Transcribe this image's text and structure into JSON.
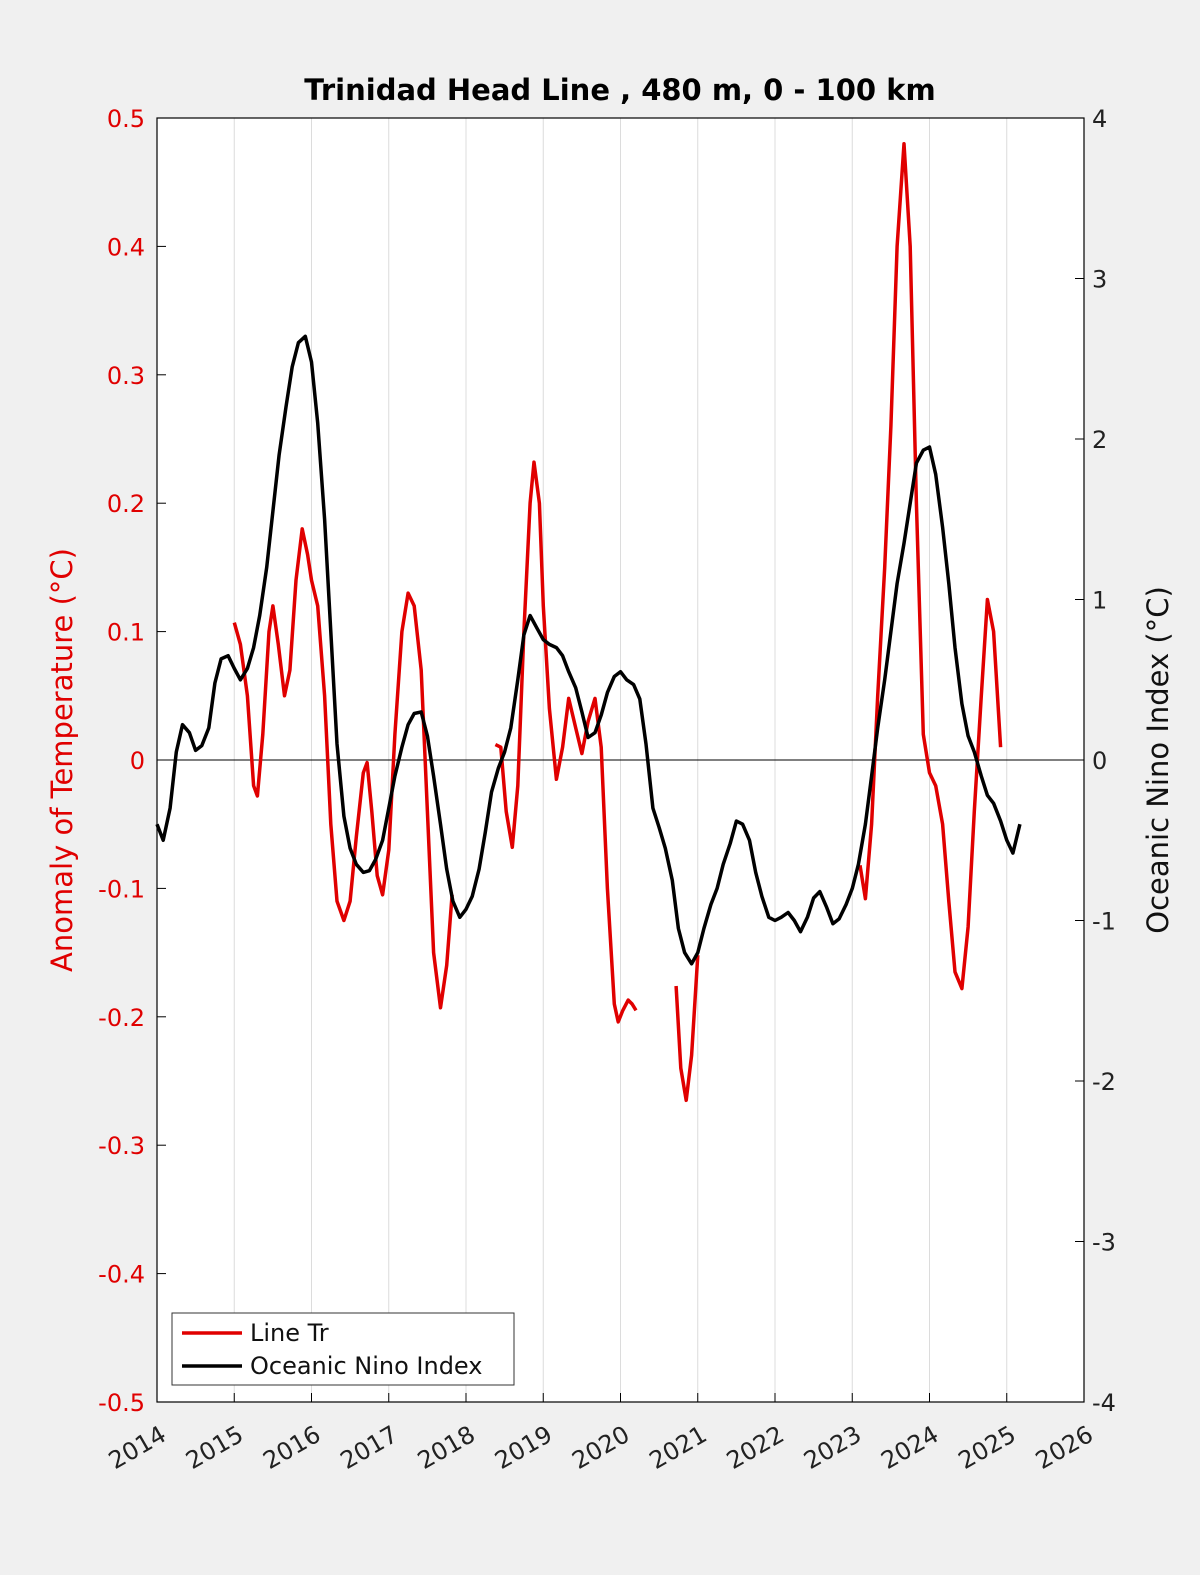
{
  "chart_data": {
    "type": "line",
    "title": "Trinidad Head Line , 480 m, 0 - 100 km",
    "ylabel_left": "Anomaly of Temperature (°C)",
    "ylabel_right": "Oceanic Nino Index (°C)",
    "xlim": [
      2014,
      2026
    ],
    "ylim_left": [
      -0.5,
      0.5
    ],
    "ylim_right": [
      -4,
      4
    ],
    "x_ticks": [
      "2014",
      "2015",
      "2016",
      "2017",
      "2018",
      "2019",
      "2020",
      "2021",
      "2022",
      "2023",
      "2024",
      "2025",
      "2026"
    ],
    "y_left_ticks": [
      "-0.5",
      "-0.4",
      "-0.3",
      "-0.2",
      "-0.1",
      "0",
      "0.1",
      "0.2",
      "0.3",
      "0.4",
      "0.5"
    ],
    "y_right_ticks": [
      "-4",
      "-3",
      "-2",
      "-1",
      "0",
      "1",
      "2",
      "3",
      "4"
    ],
    "grid": "vertical",
    "legend_position": "bottom-left",
    "legend": [
      "Line Tr",
      "Oceanic Nino Index"
    ],
    "colors": {
      "line_tr": "#e00000",
      "oni": "#000000",
      "left_axis": "#e00000"
    },
    "series": [
      {
        "name": "Line Tr",
        "axis": "left",
        "color": "#e00000",
        "segments": [
          [
            [
              2015.0,
              0.107
            ],
            [
              2015.08,
              0.09
            ],
            [
              2015.17,
              0.05
            ],
            [
              2015.25,
              -0.02
            ],
            [
              2015.3,
              -0.028
            ],
            [
              2015.37,
              0.02
            ],
            [
              2015.45,
              0.1
            ],
            [
              2015.5,
              0.12
            ],
            [
              2015.57,
              0.09
            ],
            [
              2015.65,
              0.05
            ],
            [
              2015.72,
              0.07
            ],
            [
              2015.8,
              0.14
            ],
            [
              2015.88,
              0.18
            ],
            [
              2015.95,
              0.16
            ],
            [
              2016.0,
              0.14
            ],
            [
              2016.08,
              0.12
            ],
            [
              2016.17,
              0.05
            ],
            [
              2016.25,
              -0.05
            ],
            [
              2016.33,
              -0.11
            ],
            [
              2016.42,
              -0.125
            ],
            [
              2016.5,
              -0.11
            ],
            [
              2016.58,
              -0.06
            ],
            [
              2016.67,
              -0.01
            ],
            [
              2016.72,
              -0.002
            ],
            [
              2016.78,
              -0.04
            ],
            [
              2016.85,
              -0.09
            ],
            [
              2016.92,
              -0.105
            ],
            [
              2017.0,
              -0.07
            ],
            [
              2017.08,
              0.02
            ],
            [
              2017.17,
              0.1
            ],
            [
              2017.25,
              0.13
            ],
            [
              2017.33,
              0.12
            ],
            [
              2017.42,
              0.07
            ],
            [
              2017.5,
              -0.04
            ],
            [
              2017.58,
              -0.15
            ],
            [
              2017.67,
              -0.193
            ],
            [
              2017.75,
              -0.16
            ],
            [
              2017.82,
              -0.105
            ]
          ],
          [
            [
              2018.38,
              0.012
            ],
            [
              2018.45,
              0.01
            ],
            [
              2018.52,
              -0.04
            ],
            [
              2018.6,
              -0.068
            ],
            [
              2018.67,
              -0.02
            ],
            [
              2018.75,
              0.1
            ],
            [
              2018.83,
              0.2
            ],
            [
              2018.88,
              0.232
            ],
            [
              2018.95,
              0.2
            ],
            [
              2019.0,
              0.12
            ],
            [
              2019.08,
              0.04
            ],
            [
              2019.17,
              -0.015
            ],
            [
              2019.25,
              0.01
            ],
            [
              2019.33,
              0.048
            ],
            [
              2019.42,
              0.025
            ],
            [
              2019.5,
              0.005
            ],
            [
              2019.58,
              0.03
            ],
            [
              2019.67,
              0.048
            ],
            [
              2019.75,
              0.01
            ],
            [
              2019.83,
              -0.1
            ],
            [
              2019.92,
              -0.19
            ],
            [
              2019.97,
              -0.204
            ],
            [
              2020.03,
              -0.195
            ],
            [
              2020.1,
              -0.187
            ],
            [
              2020.15,
              -0.19
            ],
            [
              2020.2,
              -0.195
            ]
          ],
          [
            [
              2020.72,
              -0.176
            ],
            [
              2020.78,
              -0.24
            ],
            [
              2020.85,
              -0.265
            ],
            [
              2020.92,
              -0.23
            ],
            [
              2021.0,
              -0.152
            ]
          ],
          [
            [
              2023.1,
              -0.082
            ],
            [
              2023.17,
              -0.108
            ],
            [
              2023.25,
              -0.05
            ],
            [
              2023.33,
              0.05
            ],
            [
              2023.42,
              0.15
            ],
            [
              2023.5,
              0.26
            ],
            [
              2023.58,
              0.4
            ],
            [
              2023.67,
              0.48
            ],
            [
              2023.75,
              0.4
            ],
            [
              2023.83,
              0.2
            ],
            [
              2023.92,
              0.02
            ],
            [
              2024.0,
              -0.01
            ],
            [
              2024.08,
              -0.02
            ],
            [
              2024.17,
              -0.05
            ],
            [
              2024.25,
              -0.11
            ],
            [
              2024.33,
              -0.165
            ],
            [
              2024.42,
              -0.178
            ],
            [
              2024.5,
              -0.13
            ],
            [
              2024.58,
              -0.04
            ],
            [
              2024.67,
              0.05
            ],
            [
              2024.75,
              0.125
            ],
            [
              2024.83,
              0.1
            ],
            [
              2024.92,
              0.01
            ]
          ]
        ]
      },
      {
        "name": "Oceanic Nino Index",
        "axis": "right",
        "color": "#000000",
        "segments": [
          [
            [
              2014.0,
              -0.4
            ],
            [
              2014.08,
              -0.5
            ],
            [
              2014.17,
              -0.3
            ],
            [
              2014.25,
              0.05
            ],
            [
              2014.33,
              0.22
            ],
            [
              2014.42,
              0.17
            ],
            [
              2014.5,
              0.06
            ],
            [
              2014.58,
              0.09
            ],
            [
              2014.67,
              0.2
            ],
            [
              2014.75,
              0.48
            ],
            [
              2014.83,
              0.63
            ],
            [
              2014.92,
              0.65
            ],
            [
              2015.0,
              0.57
            ],
            [
              2015.08,
              0.5
            ],
            [
              2015.17,
              0.57
            ],
            [
              2015.25,
              0.7
            ],
            [
              2015.33,
              0.9
            ],
            [
              2015.42,
              1.2
            ],
            [
              2015.5,
              1.55
            ],
            [
              2015.58,
              1.9
            ],
            [
              2015.67,
              2.2
            ],
            [
              2015.75,
              2.45
            ],
            [
              2015.83,
              2.6
            ],
            [
              2015.92,
              2.64
            ],
            [
              2016.0,
              2.48
            ],
            [
              2016.08,
              2.1
            ],
            [
              2016.17,
              1.5
            ],
            [
              2016.25,
              0.8
            ],
            [
              2016.33,
              0.1
            ],
            [
              2016.42,
              -0.35
            ],
            [
              2016.5,
              -0.55
            ],
            [
              2016.58,
              -0.65
            ],
            [
              2016.67,
              -0.7
            ],
            [
              2016.75,
              -0.69
            ],
            [
              2016.83,
              -0.62
            ],
            [
              2016.92,
              -0.5
            ],
            [
              2017.0,
              -0.3
            ],
            [
              2017.08,
              -0.1
            ],
            [
              2017.17,
              0.08
            ],
            [
              2017.25,
              0.22
            ],
            [
              2017.33,
              0.29
            ],
            [
              2017.42,
              0.3
            ],
            [
              2017.5,
              0.15
            ],
            [
              2017.58,
              -0.1
            ],
            [
              2017.67,
              -0.4
            ],
            [
              2017.75,
              -0.68
            ],
            [
              2017.83,
              -0.88
            ],
            [
              2017.92,
              -0.98
            ],
            [
              2018.0,
              -0.93
            ],
            [
              2018.08,
              -0.85
            ],
            [
              2018.17,
              -0.68
            ],
            [
              2018.25,
              -0.45
            ],
            [
              2018.33,
              -0.2
            ],
            [
              2018.42,
              -0.05
            ],
            [
              2018.5,
              0.05
            ],
            [
              2018.58,
              0.2
            ],
            [
              2018.67,
              0.5
            ],
            [
              2018.75,
              0.78
            ],
            [
              2018.83,
              0.9
            ],
            [
              2018.92,
              0.82
            ],
            [
              2019.0,
              0.75
            ],
            [
              2019.08,
              0.72
            ],
            [
              2019.17,
              0.7
            ],
            [
              2019.25,
              0.65
            ],
            [
              2019.33,
              0.55
            ],
            [
              2019.42,
              0.45
            ],
            [
              2019.5,
              0.3
            ],
            [
              2019.58,
              0.14
            ],
            [
              2019.67,
              0.17
            ],
            [
              2019.75,
              0.28
            ],
            [
              2019.83,
              0.42
            ],
            [
              2019.92,
              0.52
            ],
            [
              2020.0,
              0.55
            ],
            [
              2020.08,
              0.5
            ],
            [
              2020.17,
              0.47
            ],
            [
              2020.25,
              0.38
            ],
            [
              2020.33,
              0.1
            ],
            [
              2020.42,
              -0.3
            ],
            [
              2020.5,
              -0.42
            ],
            [
              2020.58,
              -0.55
            ],
            [
              2020.67,
              -0.75
            ],
            [
              2020.75,
              -1.05
            ],
            [
              2020.83,
              -1.2
            ],
            [
              2020.92,
              -1.27
            ],
            [
              2021.0,
              -1.2
            ],
            [
              2021.08,
              -1.05
            ],
            [
              2021.17,
              -0.9
            ],
            [
              2021.25,
              -0.8
            ],
            [
              2021.33,
              -0.65
            ],
            [
              2021.42,
              -0.52
            ],
            [
              2021.5,
              -0.38
            ],
            [
              2021.58,
              -0.4
            ],
            [
              2021.67,
              -0.5
            ],
            [
              2021.75,
              -0.7
            ],
            [
              2021.83,
              -0.85
            ],
            [
              2021.92,
              -0.98
            ],
            [
              2022.0,
              -1.0
            ],
            [
              2022.08,
              -0.98
            ],
            [
              2022.17,
              -0.95
            ],
            [
              2022.25,
              -1.0
            ],
            [
              2022.33,
              -1.07
            ],
            [
              2022.42,
              -0.98
            ],
            [
              2022.5,
              -0.86
            ],
            [
              2022.58,
              -0.82
            ],
            [
              2022.67,
              -0.92
            ],
            [
              2022.75,
              -1.02
            ],
            [
              2022.83,
              -0.99
            ],
            [
              2022.92,
              -0.9
            ],
            [
              2023.0,
              -0.8
            ],
            [
              2023.08,
              -0.65
            ],
            [
              2023.17,
              -0.4
            ],
            [
              2023.25,
              -0.1
            ],
            [
              2023.33,
              0.2
            ],
            [
              2023.42,
              0.5
            ],
            [
              2023.5,
              0.8
            ],
            [
              2023.58,
              1.1
            ],
            [
              2023.67,
              1.35
            ],
            [
              2023.75,
              1.6
            ],
            [
              2023.83,
              1.85
            ],
            [
              2023.92,
              1.93
            ],
            [
              2024.0,
              1.95
            ],
            [
              2024.08,
              1.78
            ],
            [
              2024.17,
              1.45
            ],
            [
              2024.25,
              1.1
            ],
            [
              2024.33,
              0.7
            ],
            [
              2024.42,
              0.35
            ],
            [
              2024.5,
              0.15
            ],
            [
              2024.58,
              0.05
            ],
            [
              2024.67,
              -0.1
            ],
            [
              2024.75,
              -0.22
            ],
            [
              2024.83,
              -0.27
            ],
            [
              2024.92,
              -0.38
            ],
            [
              2025.0,
              -0.5
            ],
            [
              2025.08,
              -0.58
            ],
            [
              2025.17,
              -0.4
            ]
          ]
        ]
      }
    ]
  }
}
